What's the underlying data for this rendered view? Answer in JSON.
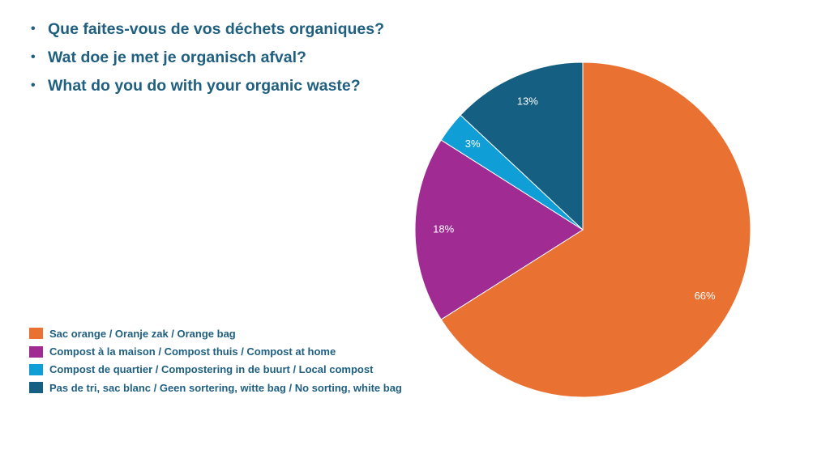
{
  "questions": [
    "Que faites-vous de vos déchets organiques?",
    "Wat doe je met je organisch afval?",
    "What do you do with your organic waste?"
  ],
  "bullet": "•",
  "chart_data": {
    "type": "pie",
    "title": "",
    "legend_position": "left-bottom",
    "start_angle_deg": 0,
    "direction": "clockwise",
    "slices": [
      {
        "name": "Sac orange / Oranje zak / Orange bag",
        "value": 66,
        "label": "66%",
        "color": "#e97132"
      },
      {
        "name": "Compost à la maison / Compost thuis / Compost at home",
        "value": 18,
        "label": "18%",
        "color": "#a02b93"
      },
      {
        "name": "Compost de quartier  / Compostering in de buurt / Local compost",
        "value": 3,
        "label": "3%",
        "color": "#0f9ed5"
      },
      {
        "name": "Pas de tri, sac blanc / Geen sortering, witte bag / No sorting, white bag",
        "value": 13,
        "label": "13%",
        "color": "#156082"
      }
    ]
  }
}
